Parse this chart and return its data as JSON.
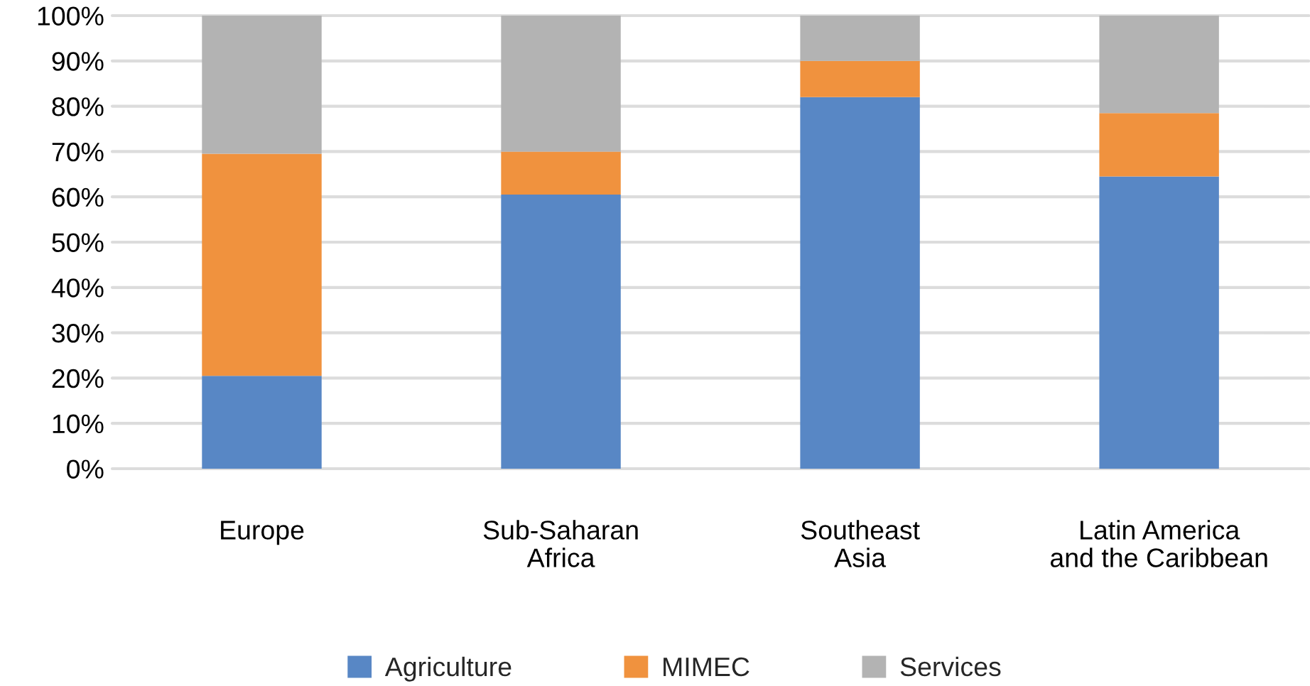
{
  "chart_data": {
    "type": "bar",
    "stacked": true,
    "categories": [
      "Europe",
      "Sub-Saharan\nAfrica",
      "Southeast\nAsia",
      "Latin America\nand the Caribbean"
    ],
    "series": [
      {
        "name": "Agriculture",
        "color": "#5887c5",
        "values": [
          20.5,
          60.5,
          82,
          64.5
        ]
      },
      {
        "name": "MIMEC",
        "color": "#f0923e",
        "values": [
          49,
          9.5,
          8,
          14
        ]
      },
      {
        "name": "Services",
        "color": "#b3b3b3",
        "values": [
          30.5,
          30,
          10,
          21.5
        ]
      }
    ],
    "ylim": [
      0,
      100
    ],
    "yticks": [
      {
        "value": 0,
        "label": "0%"
      },
      {
        "value": 10,
        "label": "10%"
      },
      {
        "value": 20,
        "label": "20%"
      },
      {
        "value": 30,
        "label": "30%"
      },
      {
        "value": 40,
        "label": "40%"
      },
      {
        "value": 50,
        "label": "50%"
      },
      {
        "value": 60,
        "label": "60%"
      },
      {
        "value": 70,
        "label": "70%"
      },
      {
        "value": 80,
        "label": "80%"
      },
      {
        "value": 90,
        "label": "90%"
      },
      {
        "value": 100,
        "label": "100%"
      }
    ],
    "grid": "y",
    "legend": "bottom"
  }
}
